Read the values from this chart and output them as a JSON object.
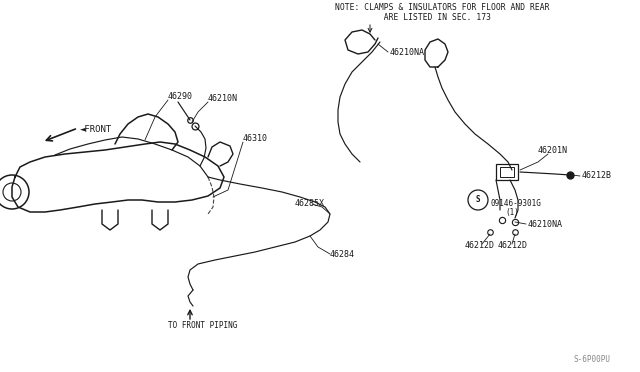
{
  "bg_color": "#ffffff",
  "line_color": "#1a1a1a",
  "fig_id": "S-6P00PU",
  "note_line1": "NOTE: CLAMPS & INSULATORS FOR FLOOR AND REAR",
  "note_line2": "          ARE LISTED IN SEC. 173"
}
